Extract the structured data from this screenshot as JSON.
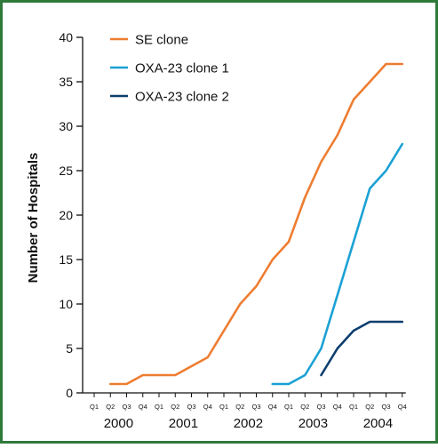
{
  "chart_data": {
    "type": "line",
    "ylabel": "Number of Hospitals",
    "xlabel": "",
    "ylim": [
      0,
      40
    ],
    "yticks": [
      0,
      5,
      10,
      15,
      20,
      25,
      30,
      35,
      40
    ],
    "quarters": [
      "Q1",
      "Q2",
      "Q3",
      "Q4",
      "Q1",
      "Q2",
      "Q3",
      "Q4",
      "Q1",
      "Q2",
      "Q3",
      "Q4",
      "Q1",
      "Q2",
      "Q3",
      "Q4",
      "Q1",
      "Q2",
      "Q3",
      "Q4"
    ],
    "years": [
      "2000",
      "2001",
      "2002",
      "2003",
      "2004"
    ],
    "legend_position": "top-left",
    "series": [
      {
        "name": "SE clone",
        "color": "#ee7d31",
        "values": [
          null,
          1,
          1,
          2,
          2,
          2,
          3,
          4,
          7,
          10,
          12,
          15,
          17,
          22,
          26,
          29,
          33,
          35,
          37,
          37
        ]
      },
      {
        "name": "OXA-23 clone 1",
        "color": "#1ba1d4",
        "values": [
          null,
          null,
          null,
          null,
          null,
          null,
          null,
          null,
          null,
          null,
          null,
          1,
          1,
          2,
          5,
          11,
          17,
          23,
          25,
          28
        ]
      },
      {
        "name": "OXA-23 clone 2",
        "color": "#0d3e6e",
        "values": [
          null,
          null,
          null,
          null,
          null,
          null,
          null,
          null,
          null,
          null,
          null,
          null,
          null,
          null,
          2,
          5,
          7,
          8,
          8,
          8
        ]
      }
    ]
  },
  "colors": {
    "border": "#2f7a3a",
    "axis": "#111111"
  }
}
